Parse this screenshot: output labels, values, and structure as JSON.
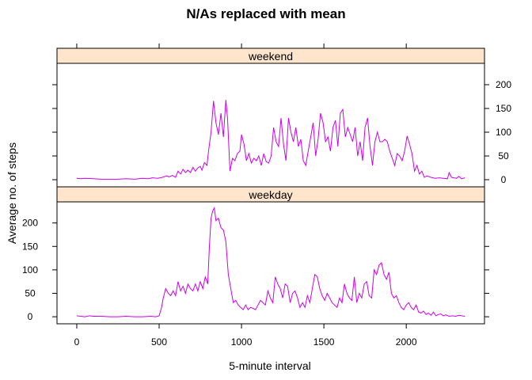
{
  "chart_data": {
    "type": "line",
    "title": "N/As replaced with mean",
    "xlabel": "5-minute interval",
    "ylabel": "Average no. of steps",
    "xlim": [
      -120,
      2475
    ],
    "ylim": [
      -15,
      245
    ],
    "x_ticks": [
      0,
      500,
      1000,
      1500,
      2000
    ],
    "y_ticks": [
      0,
      50,
      100,
      150,
      200
    ],
    "line_color": "#cc00ee",
    "strip_color": "#ffe5cc",
    "grid": false,
    "legend": "none",
    "panels": [
      {
        "name": "weekend",
        "points": [
          [
            0,
            3
          ],
          [
            25,
            2
          ],
          [
            50,
            3
          ],
          [
            100,
            2
          ],
          [
            150,
            1
          ],
          [
            200,
            1
          ],
          [
            250,
            1
          ],
          [
            300,
            2
          ],
          [
            350,
            1
          ],
          [
            400,
            3
          ],
          [
            430,
            2
          ],
          [
            460,
            4
          ],
          [
            490,
            3
          ],
          [
            505,
            4
          ],
          [
            520,
            5
          ],
          [
            545,
            8
          ],
          [
            560,
            6
          ],
          [
            580,
            9
          ],
          [
            600,
            5
          ],
          [
            615,
            18
          ],
          [
            630,
            12
          ],
          [
            645,
            22
          ],
          [
            660,
            15
          ],
          [
            675,
            20
          ],
          [
            690,
            15
          ],
          [
            705,
            26
          ],
          [
            720,
            18
          ],
          [
            735,
            25
          ],
          [
            750,
            28
          ],
          [
            760,
            20
          ],
          [
            775,
            36
          ],
          [
            790,
            30
          ],
          [
            800,
            60
          ],
          [
            815,
            100
          ],
          [
            830,
            166
          ],
          [
            845,
            120
          ],
          [
            860,
            95
          ],
          [
            875,
            140
          ],
          [
            890,
            90
          ],
          [
            905,
            168
          ],
          [
            915,
            130
          ],
          [
            930,
            18
          ],
          [
            945,
            45
          ],
          [
            960,
            40
          ],
          [
            975,
            55
          ],
          [
            990,
            60
          ],
          [
            1000,
            95
          ],
          [
            1015,
            75
          ],
          [
            1030,
            40
          ],
          [
            1045,
            55
          ],
          [
            1060,
            35
          ],
          [
            1075,
            45
          ],
          [
            1090,
            40
          ],
          [
            1105,
            50
          ],
          [
            1120,
            30
          ],
          [
            1135,
            55
          ],
          [
            1150,
            38
          ],
          [
            1165,
            35
          ],
          [
            1180,
            50
          ],
          [
            1195,
            110
          ],
          [
            1210,
            80
          ],
          [
            1225,
            70
          ],
          [
            1240,
            130
          ],
          [
            1255,
            75
          ],
          [
            1270,
            40
          ],
          [
            1285,
            130
          ],
          [
            1300,
            100
          ],
          [
            1315,
            80
          ],
          [
            1330,
            110
          ],
          [
            1345,
            70
          ],
          [
            1360,
            85
          ],
          [
            1375,
            40
          ],
          [
            1390,
            30
          ],
          [
            1405,
            60
          ],
          [
            1420,
            90
          ],
          [
            1435,
            120
          ],
          [
            1450,
            50
          ],
          [
            1465,
            85
          ],
          [
            1480,
            140
          ],
          [
            1495,
            120
          ],
          [
            1510,
            80
          ],
          [
            1525,
            90
          ],
          [
            1540,
            60
          ],
          [
            1555,
            110
          ],
          [
            1570,
            125
          ],
          [
            1585,
            70
          ],
          [
            1600,
            140
          ],
          [
            1615,
            148
          ],
          [
            1630,
            90
          ],
          [
            1645,
            110
          ],
          [
            1660,
            95
          ],
          [
            1675,
            80
          ],
          [
            1690,
            110
          ],
          [
            1705,
            50
          ],
          [
            1720,
            80
          ],
          [
            1735,
            40
          ],
          [
            1750,
            110
          ],
          [
            1765,
            130
          ],
          [
            1780,
            70
          ],
          [
            1795,
            30
          ],
          [
            1810,
            80
          ],
          [
            1825,
            100
          ],
          [
            1840,
            80
          ],
          [
            1855,
            80
          ],
          [
            1870,
            85
          ],
          [
            1885,
            80
          ],
          [
            1900,
            60
          ],
          [
            1915,
            45
          ],
          [
            1930,
            30
          ],
          [
            1945,
            55
          ],
          [
            1960,
            50
          ],
          [
            1975,
            40
          ],
          [
            1990,
            60
          ],
          [
            2005,
            92
          ],
          [
            2020,
            75
          ],
          [
            2035,
            55
          ],
          [
            2050,
            18
          ],
          [
            2065,
            30
          ],
          [
            2080,
            12
          ],
          [
            2095,
            18
          ],
          [
            2110,
            5
          ],
          [
            2125,
            8
          ],
          [
            2150,
            5
          ],
          [
            2175,
            3
          ],
          [
            2200,
            4
          ],
          [
            2225,
            3
          ],
          [
            2250,
            2
          ],
          [
            2260,
            15
          ],
          [
            2275,
            5
          ],
          [
            2290,
            4
          ],
          [
            2305,
            3
          ],
          [
            2320,
            7
          ],
          [
            2335,
            2
          ],
          [
            2355,
            4
          ]
        ]
      },
      {
        "name": "weekday",
        "points": [
          [
            0,
            2
          ],
          [
            25,
            1
          ],
          [
            50,
            0
          ],
          [
            75,
            2
          ],
          [
            100,
            1
          ],
          [
            150,
            1
          ],
          [
            200,
            0
          ],
          [
            250,
            0
          ],
          [
            300,
            1
          ],
          [
            350,
            0
          ],
          [
            400,
            0
          ],
          [
            450,
            1
          ],
          [
            480,
            0
          ],
          [
            500,
            2
          ],
          [
            515,
            20
          ],
          [
            525,
            40
          ],
          [
            540,
            60
          ],
          [
            555,
            50
          ],
          [
            570,
            45
          ],
          [
            585,
            55
          ],
          [
            600,
            45
          ],
          [
            615,
            75
          ],
          [
            630,
            55
          ],
          [
            645,
            65
          ],
          [
            660,
            50
          ],
          [
            675,
            70
          ],
          [
            690,
            60
          ],
          [
            705,
            55
          ],
          [
            720,
            70
          ],
          [
            735,
            55
          ],
          [
            750,
            75
          ],
          [
            765,
            60
          ],
          [
            780,
            85
          ],
          [
            795,
            70
          ],
          [
            805,
            150
          ],
          [
            815,
            210
          ],
          [
            825,
            225
          ],
          [
            835,
            232
          ],
          [
            845,
            205
          ],
          [
            860,
            210
          ],
          [
            875,
            190
          ],
          [
            890,
            185
          ],
          [
            905,
            160
          ],
          [
            920,
            90
          ],
          [
            935,
            60
          ],
          [
            950,
            30
          ],
          [
            965,
            35
          ],
          [
            980,
            25
          ],
          [
            995,
            20
          ],
          [
            1010,
            15
          ],
          [
            1025,
            25
          ],
          [
            1040,
            15
          ],
          [
            1055,
            20
          ],
          [
            1070,
            18
          ],
          [
            1085,
            15
          ],
          [
            1100,
            25
          ],
          [
            1115,
            35
          ],
          [
            1130,
            30
          ],
          [
            1145,
            25
          ],
          [
            1160,
            55
          ],
          [
            1175,
            40
          ],
          [
            1190,
            30
          ],
          [
            1205,
            85
          ],
          [
            1220,
            70
          ],
          [
            1235,
            60
          ],
          [
            1250,
            40
          ],
          [
            1265,
            70
          ],
          [
            1280,
            65
          ],
          [
            1295,
            30
          ],
          [
            1310,
            50
          ],
          [
            1325,
            55
          ],
          [
            1340,
            40
          ],
          [
            1355,
            20
          ],
          [
            1370,
            30
          ],
          [
            1385,
            20
          ],
          [
            1400,
            45
          ],
          [
            1415,
            30
          ],
          [
            1430,
            60
          ],
          [
            1445,
            90
          ],
          [
            1460,
            85
          ],
          [
            1475,
            60
          ],
          [
            1490,
            45
          ],
          [
            1505,
            35
          ],
          [
            1520,
            50
          ],
          [
            1535,
            40
          ],
          [
            1550,
            30
          ],
          [
            1565,
            25
          ],
          [
            1580,
            20
          ],
          [
            1595,
            40
          ],
          [
            1610,
            30
          ],
          [
            1625,
            70
          ],
          [
            1640,
            50
          ],
          [
            1655,
            40
          ],
          [
            1670,
            35
          ],
          [
            1685,
            85
          ],
          [
            1700,
            30
          ],
          [
            1715,
            50
          ],
          [
            1730,
            40
          ],
          [
            1745,
            70
          ],
          [
            1760,
            75
          ],
          [
            1775,
            45
          ],
          [
            1790,
            40
          ],
          [
            1805,
            100
          ],
          [
            1820,
            90
          ],
          [
            1835,
            110
          ],
          [
            1850,
            115
          ],
          [
            1865,
            90
          ],
          [
            1880,
            80
          ],
          [
            1895,
            95
          ],
          [
            1910,
            50
          ],
          [
            1925,
            40
          ],
          [
            1940,
            45
          ],
          [
            1955,
            30
          ],
          [
            1970,
            20
          ],
          [
            1985,
            15
          ],
          [
            2000,
            25
          ],
          [
            2015,
            30
          ],
          [
            2030,
            20
          ],
          [
            2045,
            15
          ],
          [
            2060,
            25
          ],
          [
            2075,
            10
          ],
          [
            2090,
            8
          ],
          [
            2105,
            12
          ],
          [
            2120,
            5
          ],
          [
            2135,
            8
          ],
          [
            2150,
            3
          ],
          [
            2165,
            10
          ],
          [
            2180,
            2
          ],
          [
            2195,
            5
          ],
          [
            2210,
            6
          ],
          [
            2225,
            2
          ],
          [
            2240,
            4
          ],
          [
            2260,
            1
          ],
          [
            2280,
            2
          ],
          [
            2300,
            1
          ],
          [
            2320,
            3
          ],
          [
            2355,
            1
          ]
        ]
      }
    ]
  }
}
